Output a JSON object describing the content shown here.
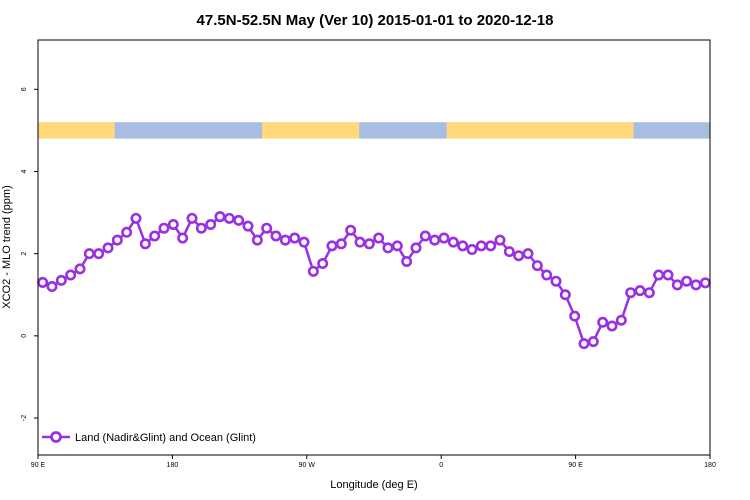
{
  "chart_data": {
    "type": "line",
    "title": "47.5N-52.5N May (Ver 10)   2015-01-01 to 2020-12-18",
    "xlabel": "Longitude (deg E)",
    "ylabel": "XCO2 - MLO trend (ppm)",
    "xlim": [
      90,
      450
    ],
    "ylim": [
      -2.9,
      7.2
    ],
    "x_ticks": [
      {
        "value": 90,
        "label": "90 E"
      },
      {
        "value": 162,
        "label": "180"
      },
      {
        "value": 234,
        "label": "90 W"
      },
      {
        "value": 306,
        "label": "0"
      },
      {
        "value": 378,
        "label": "90 E"
      },
      {
        "value": 450,
        "label": "180"
      }
    ],
    "y_ticks": [
      {
        "value": -2,
        "label": "-2"
      },
      {
        "value": 0,
        "label": "0"
      },
      {
        "value": 2,
        "label": "2"
      },
      {
        "value": 4,
        "label": "4"
      },
      {
        "value": 6,
        "label": "6"
      }
    ],
    "surface_band": {
      "y_top": 5.2,
      "y_bottom": 4.8,
      "land_color": "#FFD97A",
      "ocean_color": "#A8BEE0",
      "segments": [
        {
          "type": "land",
          "x0": 90,
          "x1": 131
        },
        {
          "type": "ocean",
          "x0": 131,
          "x1": 210
        },
        {
          "type": "land",
          "x0": 210,
          "x1": 262
        },
        {
          "type": "ocean",
          "x0": 262,
          "x1": 309
        },
        {
          "type": "land",
          "x0": 309,
          "x1": 409
        },
        {
          "type": "ocean",
          "x0": 409,
          "x1": 450
        }
      ]
    },
    "series": [
      {
        "name": "Land (Nadir&Glint) and Ocean (Glint)",
        "color": "#9B30E0",
        "x": [
          92.5,
          97.5,
          102.5,
          107.5,
          112.5,
          117.5,
          122.5,
          127.5,
          132.5,
          137.5,
          142.5,
          147.5,
          152.5,
          157.5,
          162.5,
          167.5,
          172.5,
          177.5,
          182.5,
          187.5,
          192.5,
          197.5,
          202.5,
          207.5,
          212.5,
          217.5,
          222.5,
          227.5,
          232.5,
          237.5,
          242.5,
          247.5,
          252.5,
          257.5,
          262.5,
          267.5,
          272.5,
          277.5,
          282.5,
          287.5,
          292.5,
          297.5,
          302.5,
          307.5,
          312.5,
          317.5,
          322.5,
          327.5,
          332.5,
          337.5,
          342.5,
          347.5,
          352.5,
          357.5,
          362.5,
          367.5,
          372.5,
          377.5,
          382.5,
          387.5,
          392.5,
          397.5,
          402.5,
          407.5,
          412.5,
          417.5,
          422.5,
          427.5,
          432.5,
          437.5,
          442.5,
          447.5
        ],
        "values": [
          1.3,
          1.2,
          1.35,
          1.48,
          1.63,
          2.0,
          2.0,
          2.14,
          2.33,
          2.52,
          2.86,
          2.24,
          2.43,
          2.62,
          2.71,
          2.38,
          2.86,
          2.62,
          2.71,
          2.9,
          2.86,
          2.81,
          2.67,
          2.33,
          2.62,
          2.43,
          2.33,
          2.38,
          2.28,
          1.57,
          1.76,
          2.19,
          2.24,
          2.57,
          2.28,
          2.24,
          2.38,
          2.14,
          2.19,
          1.81,
          2.14,
          2.43,
          2.33,
          2.38,
          2.28,
          2.19,
          2.1,
          2.19,
          2.19,
          2.33,
          2.05,
          1.95,
          2.0,
          1.71,
          1.48,
          1.33,
          1.0,
          0.48,
          -0.19,
          -0.14,
          0.33,
          0.24,
          0.38,
          1.05,
          1.1,
          1.05,
          1.48,
          1.48,
          1.24,
          1.33,
          1.24,
          1.29
        ]
      }
    ],
    "legend": {
      "placement": "bottom-left"
    }
  }
}
